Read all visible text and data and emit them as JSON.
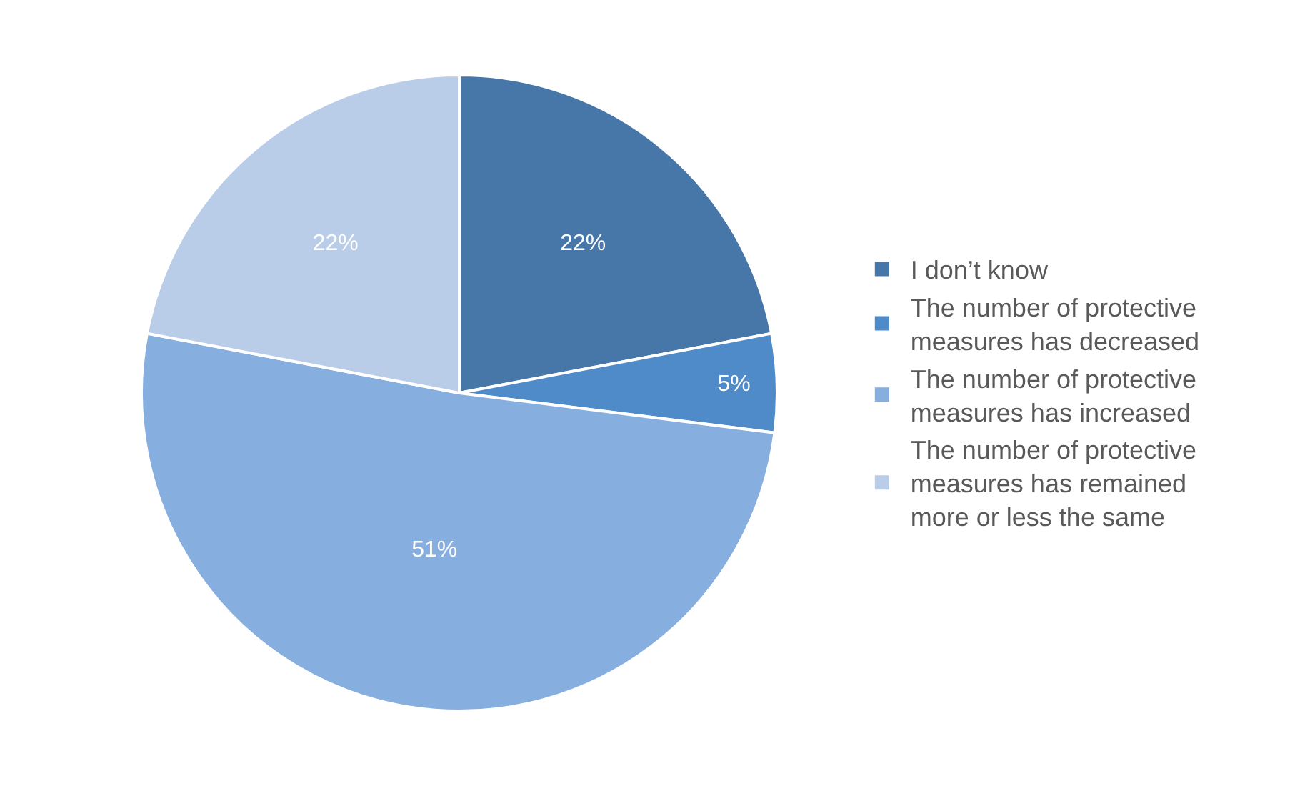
{
  "chart_data": {
    "type": "pie",
    "categories": [
      "I don’t know",
      "The number of protective measures has decreased",
      "The number of protective measures has increased",
      "The number of protective measures has remained more or less the same"
    ],
    "values": [
      22,
      5,
      51,
      22
    ],
    "value_labels": [
      "22%",
      "5%",
      "51%",
      "22%"
    ],
    "colors": [
      "#4677a8",
      "#4f8bc9",
      "#86aede",
      "#b9cde8"
    ],
    "legend": "right"
  }
}
